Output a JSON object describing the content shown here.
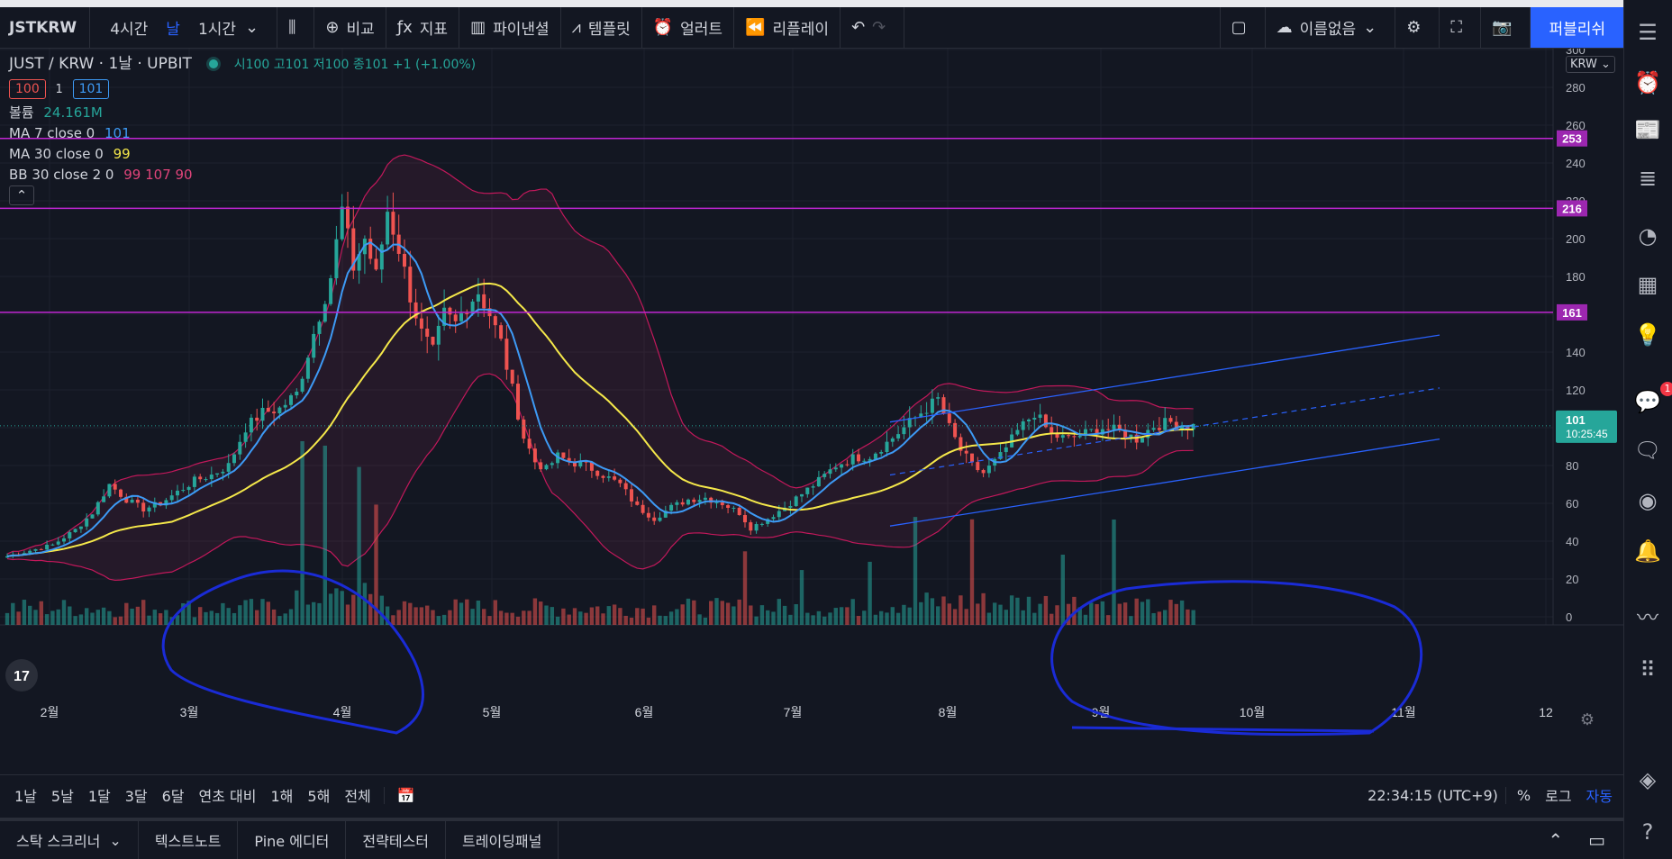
{
  "header": {
    "symbol": "JSTKRW",
    "intervals": [
      "4시간",
      "날",
      "1시간"
    ],
    "compare": "비교",
    "indicators": "지표",
    "financials": "파이낸셜",
    "templates": "템플릿",
    "alerts": "얼러트",
    "replay": "리플레이",
    "layout_name": "이름없음",
    "publish": "퍼블리쉬"
  },
  "legend": {
    "title": "JUST / KRW · 1날 · UPBIT",
    "ohlc": "시100 고101 저100 종101 +1 (+1.00%)",
    "bid": "100",
    "spread": "1",
    "ask": "101",
    "volume_label": "볼륨",
    "volume_value": "24.161M",
    "ma7_label": "MA 7 close 0",
    "ma7_value": "101",
    "ma30_label": "MA 30 close 0",
    "ma30_value": "99",
    "bb_label": "BB 30 close 2 0",
    "bb_values": "99  107  90"
  },
  "axis": {
    "currency": "KRW",
    "price_tag": "101",
    "countdown": "10:25:45",
    "hlines": [
      "253",
      "216",
      "161"
    ]
  },
  "timebar": {
    "ranges": [
      "1날",
      "5날",
      "1달",
      "3달",
      "6달",
      "연초 대비",
      "1해",
      "5해",
      "전체"
    ],
    "clock": "22:34:15 (UTC+9)",
    "percent": "%",
    "log": "로그",
    "auto": "자동"
  },
  "bottom_tabs": [
    "스탁 스크리너",
    "텍스트노트",
    "Pine 에디터",
    "전략테스터",
    "트레이딩패널"
  ],
  "chart_data": {
    "type": "candlestick",
    "symbol": "JUST / KRW",
    "timeframe": "1날",
    "exchange": "UPBIT",
    "y_ticks": [
      0,
      20,
      40,
      60,
      80,
      100,
      120,
      140,
      160,
      180,
      200,
      220,
      240,
      260,
      280,
      300
    ],
    "x_ticks": [
      "2월",
      "3월",
      "4월",
      "5월",
      "6월",
      "7월",
      "8월",
      "9월",
      "10월",
      "11월",
      "12"
    ],
    "horizontal_lines": [
      253,
      216,
      161
    ],
    "last_price": 101,
    "close_path": [
      [
        0,
        32
      ],
      [
        4,
        35
      ],
      [
        8,
        38
      ],
      [
        12,
        46
      ],
      [
        15,
        55
      ],
      [
        18,
        70
      ],
      [
        21,
        62
      ],
      [
        24,
        57
      ],
      [
        27,
        60
      ],
      [
        30,
        66
      ],
      [
        33,
        72
      ],
      [
        36,
        75
      ],
      [
        39,
        80
      ],
      [
        42,
        100
      ],
      [
        45,
        108
      ],
      [
        48,
        110
      ],
      [
        51,
        118
      ],
      [
        54,
        150
      ],
      [
        57,
        180
      ],
      [
        59,
        215
      ],
      [
        61,
        185
      ],
      [
        63,
        200
      ],
      [
        65,
        180
      ],
      [
        67,
        215
      ],
      [
        69,
        195
      ],
      [
        71,
        170
      ],
      [
        73,
        150
      ],
      [
        75,
        140
      ],
      [
        77,
        160
      ],
      [
        79,
        155
      ],
      [
        81,
        165
      ],
      [
        83,
        172
      ],
      [
        85,
        160
      ],
      [
        87,
        145
      ],
      [
        89,
        120
      ],
      [
        91,
        95
      ],
      [
        93,
        82
      ],
      [
        95,
        78
      ],
      [
        97,
        85
      ],
      [
        99,
        82
      ],
      [
        102,
        80
      ],
      [
        105,
        75
      ],
      [
        108,
        70
      ],
      [
        111,
        58
      ],
      [
        114,
        52
      ],
      [
        117,
        58
      ],
      [
        120,
        62
      ],
      [
        123,
        63
      ],
      [
        126,
        60
      ],
      [
        129,
        55
      ],
      [
        131,
        47
      ],
      [
        134,
        52
      ],
      [
        137,
        58
      ],
      [
        140,
        65
      ],
      [
        143,
        72
      ],
      [
        146,
        80
      ],
      [
        149,
        84
      ],
      [
        152,
        85
      ],
      [
        155,
        92
      ],
      [
        158,
        100
      ],
      [
        161,
        108
      ],
      [
        164,
        115
      ],
      [
        166,
        100
      ],
      [
        168,
        88
      ],
      [
        170,
        80
      ],
      [
        172,
        76
      ],
      [
        175,
        85
      ],
      [
        178,
        98
      ],
      [
        181,
        108
      ],
      [
        184,
        96
      ],
      [
        187,
        94
      ],
      [
        190,
        97
      ],
      [
        193,
        100
      ],
      [
        196,
        98
      ],
      [
        199,
        94
      ],
      [
        202,
        101
      ],
      [
        205,
        103
      ],
      [
        208,
        101
      ]
    ],
    "volume_highlight_days": [
      60,
      61,
      62,
      63,
      64,
      65,
      66,
      67,
      68,
      69,
      70,
      71,
      72,
      73,
      74,
      75,
      76,
      77,
      78,
      79,
      80,
      81,
      82,
      83,
      84,
      85,
      86,
      87,
      88,
      89
    ],
    "bollinger": {
      "period": 30,
      "mult": 2,
      "upper": 107,
      "basis": 99,
      "lower": 90
    },
    "ma7": 101,
    "ma30": 99,
    "volume": "24.161M"
  }
}
